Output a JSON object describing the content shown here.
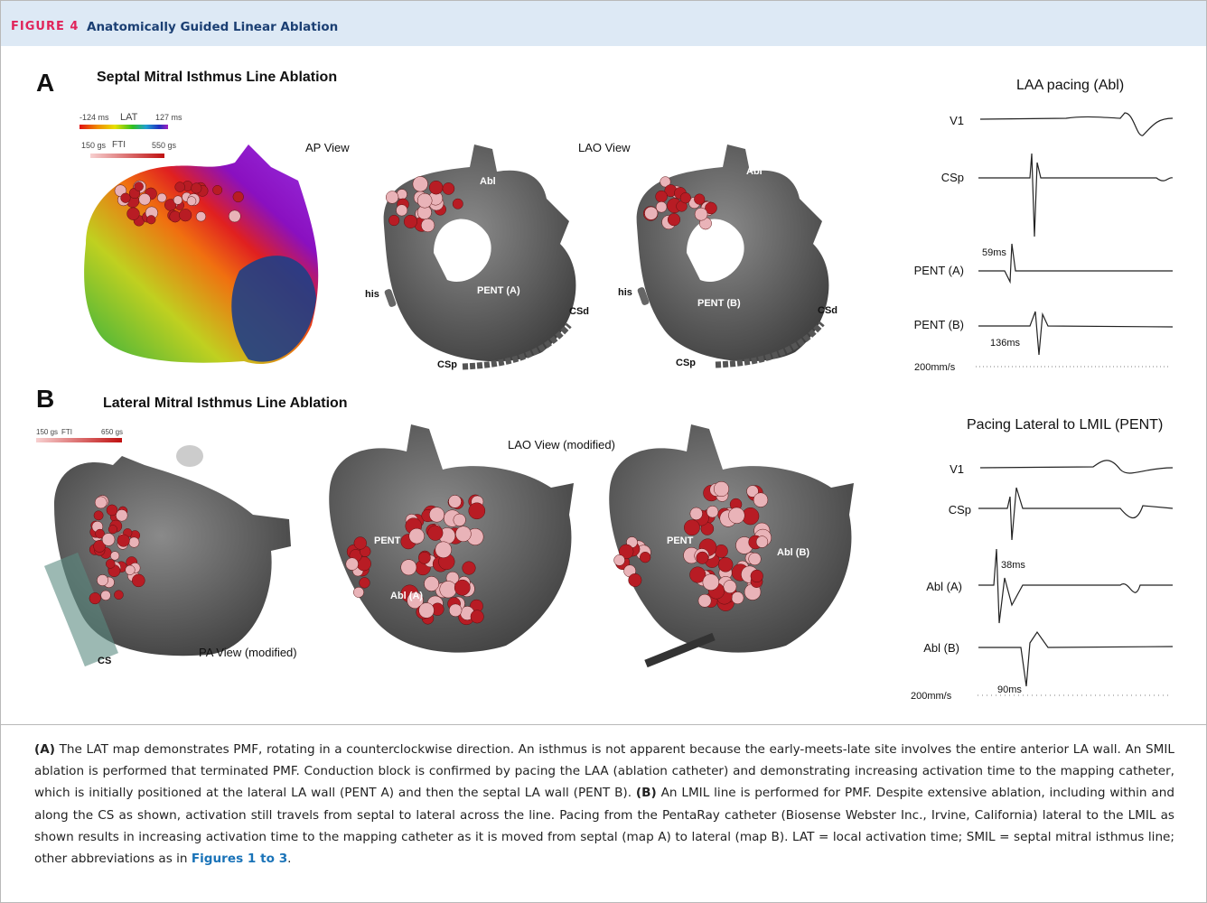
{
  "header": {
    "label": "FIGURE 4",
    "title": "Anatomically Guided Linear Ablation"
  },
  "panel_a": {
    "letter": "A",
    "title": "Septal Mitral Isthmus Line Ablation",
    "legend": {
      "lat_min": "-124 ms",
      "lat_label": "LAT",
      "lat_max": "127 ms",
      "fti_min": "150 gs",
      "fti_label": "FTI",
      "fti_max": "550 gs"
    },
    "views": [
      "AP View",
      "LAO View"
    ],
    "labels": [
      "Abl",
      "his",
      "PENT (A)",
      "CSd",
      "CSp",
      "Abl",
      "his",
      "PENT (B)",
      "CSd",
      "CSp"
    ],
    "traces": {
      "title": "LAA pacing (Abl)",
      "channels": [
        "V1",
        "CSp",
        "PENT (A)",
        "PENT (B)"
      ],
      "annotations": [
        "59ms",
        "136ms"
      ],
      "speed": "200mm/s"
    }
  },
  "panel_b": {
    "letter": "B",
    "title": "Lateral Mitral Isthmus Line Ablation",
    "legend": {
      "fti_min": "150 gs",
      "fti_label": "FTI",
      "fti_max": "650 gs"
    },
    "views": [
      "LAO View (modified)",
      "PA View (modified)"
    ],
    "labels": [
      "CS",
      "PENT",
      "Abl (A)",
      "PENT",
      "Abl (B)"
    ],
    "traces": {
      "title": "Pacing Lateral to LMIL (PENT)",
      "channels": [
        "V1",
        "CSp",
        "Abl (A)",
        "Abl (B)"
      ],
      "annotations": [
        "38ms",
        "90ms"
      ],
      "speed": "200mm/s"
    }
  },
  "caption": {
    "a_label": "(A)",
    "a_text": " The LAT map demonstrates PMF, rotating in a counterclockwise direction. An isthmus is not apparent because the early-meets-late site involves the entire anterior LA wall. An SMIL ablation is performed that terminated PMF. Conduction block is confirmed by pacing the LAA (ablation catheter) and demonstrating increasing activation time to the mapping catheter, which is initially positioned at the lateral LA wall (PENT A) and then the septal LA wall (PENT B). ",
    "b_label": "(B)",
    "b_text": " An LMIL line is performed for PMF. Despite extensive ablation, including within and along the CS as shown, activation still travels from septal to lateral across the line. Pacing from the PentaRay catheter (Biosense Webster Inc., Irvine, California) lateral to the LMIL as shown results in increasing activation time to the mapping catheter as it is moved from septal (map A) to lateral (map B). LAT = local activation time; SMIL = septal mitral isthmus line; other abbreviations as in ",
    "link": "Figures 1 to 3",
    "end": "."
  }
}
